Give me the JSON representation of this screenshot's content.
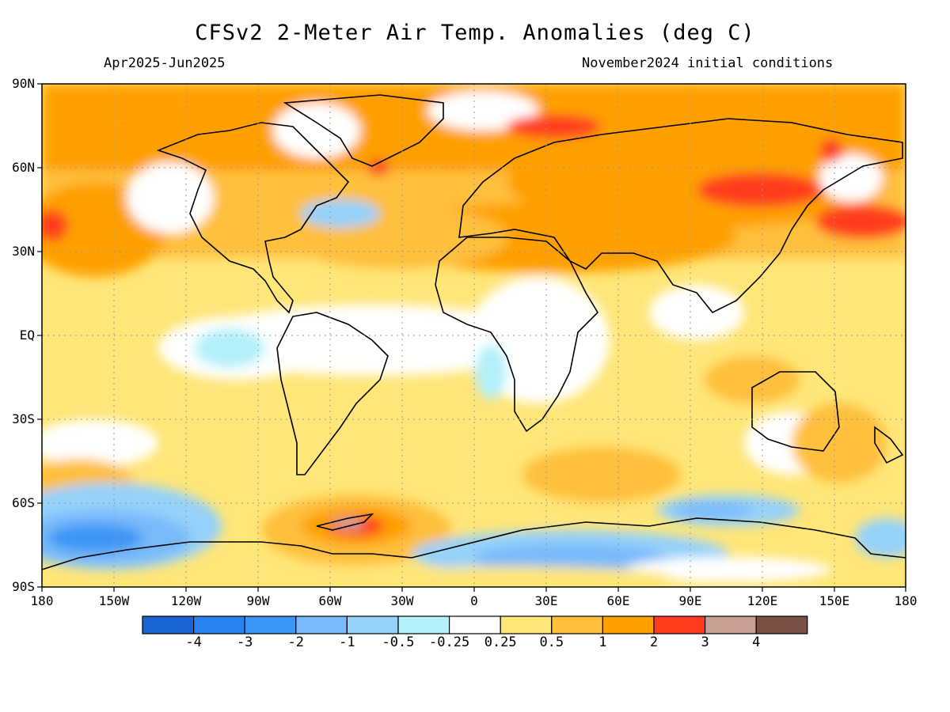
{
  "header": {
    "title": "CFSv2 2-Meter Air Temp. Anomalies (deg C)",
    "period": "Apr2025-Jun2025",
    "initial_conditions": "November2024 initial conditions"
  },
  "map": {
    "lat_labels": [
      "90N",
      "60N",
      "30N",
      "EQ",
      "30S",
      "60S",
      "90S"
    ],
    "lon_labels": [
      "180",
      "150W",
      "120W",
      "90W",
      "60W",
      "30W",
      "0",
      "30E",
      "60E",
      "90E",
      "120E",
      "150E",
      "180"
    ]
  },
  "colorbar": {
    "colors": [
      "#1964d2",
      "#2882f0",
      "#3c96f5",
      "#78b9fa",
      "#96d2fa",
      "#b4f0fa",
      "#ffffff",
      "#ffe678",
      "#ffc03c",
      "#ffa000",
      "#ff3c1e",
      "#c8a096",
      "#785046"
    ],
    "labels": [
      "-4",
      "-3",
      "-2",
      "-1",
      "-0.5",
      "-0.25",
      "0.25",
      "0.5",
      "1",
      "2",
      "3",
      "4"
    ]
  }
}
